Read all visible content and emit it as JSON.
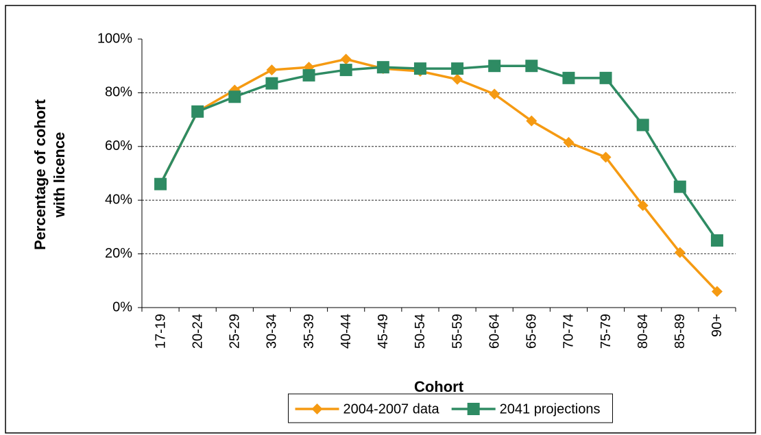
{
  "chart_data": {
    "type": "line",
    "x_label": "Cohort",
    "y_label_lines": [
      "Percentage of cohort",
      "with licence"
    ],
    "categories": [
      "17-19",
      "20-24",
      "25-29",
      "30-34",
      "35-39",
      "40-44",
      "45-49",
      "50-54",
      "55-59",
      "60-64",
      "65-69",
      "70-74",
      "75-79",
      "80-84",
      "85-89",
      "90+"
    ],
    "series": [
      {
        "name": "2004-2007 data",
        "color": "#f59a12",
        "marker": "diamond",
        "values": [
          46,
          73,
          81,
          88.5,
          89.5,
          92.5,
          89,
          88,
          85,
          79.5,
          69.5,
          61.5,
          56,
          38,
          20.5,
          6
        ]
      },
      {
        "name": "2041 projections",
        "color": "#2e8b63",
        "marker": "square",
        "values": [
          46,
          73,
          78.5,
          83.5,
          86.5,
          88.5,
          89.5,
          89,
          89,
          90,
          90,
          85.5,
          85.5,
          68,
          45,
          25
        ]
      }
    ],
    "ylim": [
      0,
      100
    ],
    "yticks": [
      {
        "value": 0,
        "label": "0%"
      },
      {
        "value": 20,
        "label": "20%"
      },
      {
        "value": 40,
        "label": "40%"
      },
      {
        "value": 60,
        "label": "60%"
      },
      {
        "value": 80,
        "label": "80%"
      },
      {
        "value": 100,
        "label": "100%"
      }
    ],
    "grid": true,
    "legend": "bottom"
  }
}
